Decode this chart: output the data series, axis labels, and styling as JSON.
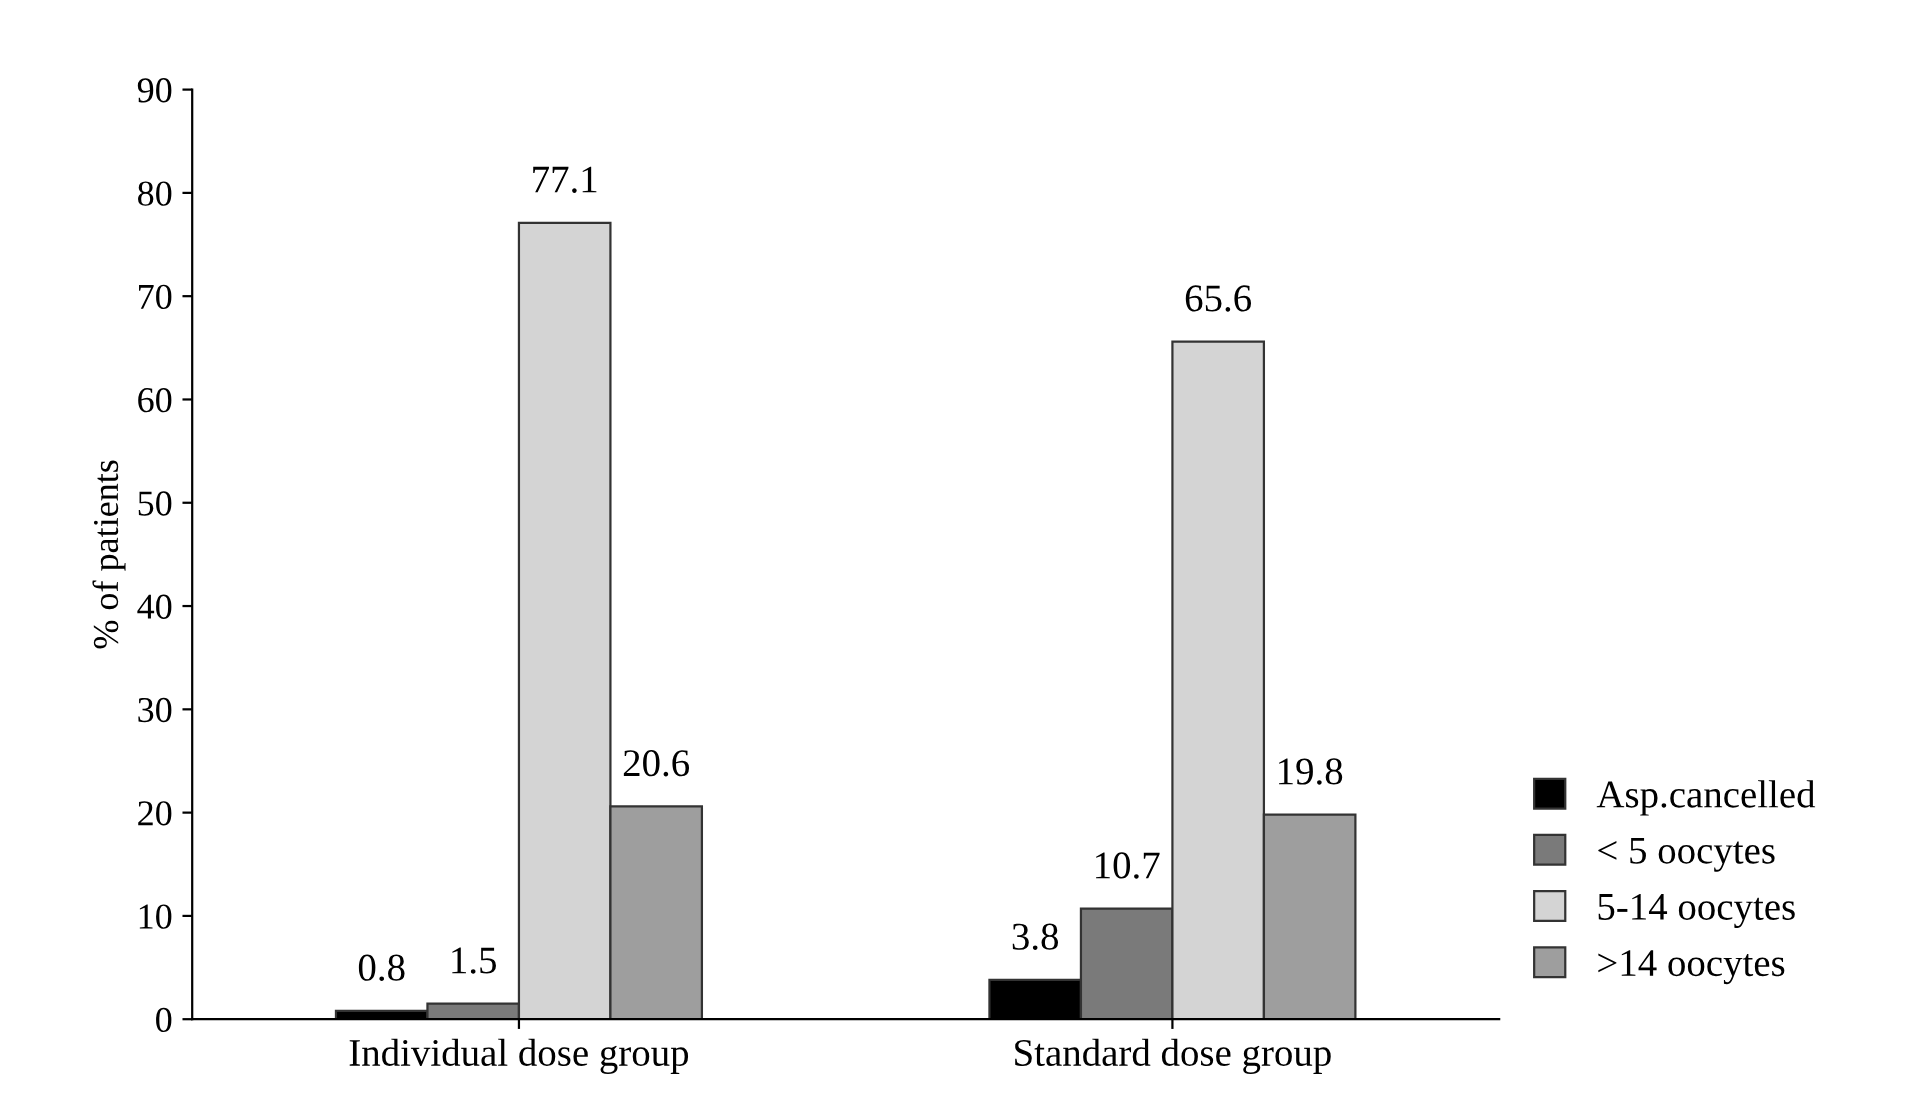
{
  "chart_data": {
    "type": "bar",
    "ylabel": "% of patients",
    "categories": [
      "Individual dose group",
      "Standard dose group"
    ],
    "series": [
      {
        "name": "Asp.cancelled",
        "color": "#000000",
        "values": [
          0.8,
          3.8
        ]
      },
      {
        "name": "< 5 oocytes",
        "color": "#7a7a7a",
        "values": [
          1.5,
          10.7
        ]
      },
      {
        "name": "5-14 oocytes",
        "color": "#d4d4d4",
        "values": [
          77.1,
          65.6
        ]
      },
      {
        "name": ">14 oocytes",
        "color": "#9e9e9e",
        "values": [
          20.6,
          19.8
        ]
      }
    ],
    "ylim": [
      0,
      90
    ],
    "yticks": [
      0,
      10,
      20,
      30,
      40,
      50,
      60,
      70,
      80,
      90
    ],
    "data_labels": true,
    "grid": false,
    "legend": "bottom right"
  }
}
